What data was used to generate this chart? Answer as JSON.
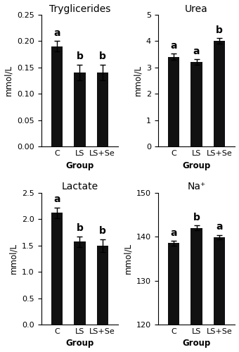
{
  "subplots": [
    {
      "title": "Tryglicerides",
      "ylabel": "mmol/L",
      "xlabel": "Group",
      "categories": [
        "C",
        "LS",
        "LS+Se"
      ],
      "values": [
        0.19,
        0.14,
        0.14
      ],
      "errors": [
        0.01,
        0.015,
        0.015
      ],
      "letters": [
        "a",
        "b",
        "b"
      ],
      "ylim": [
        0,
        0.25
      ],
      "yticks": [
        0.0,
        0.05,
        0.1,
        0.15,
        0.2,
        0.25
      ]
    },
    {
      "title": "Urea",
      "ylabel": "mmol/L",
      "xlabel": "Group",
      "categories": [
        "C",
        "LS",
        "LS+Se"
      ],
      "values": [
        3.4,
        3.2,
        4.0
      ],
      "errors": [
        0.12,
        0.1,
        0.1
      ],
      "letters": [
        "a",
        "a",
        "b"
      ],
      "ylim": [
        0,
        5
      ],
      "yticks": [
        0,
        1,
        2,
        3,
        4,
        5
      ]
    },
    {
      "title": "Lactate",
      "ylabel": "mmol/L",
      "xlabel": "Group",
      "categories": [
        "C",
        "LS",
        "LS+Se"
      ],
      "values": [
        2.12,
        1.57,
        1.5
      ],
      "errors": [
        0.1,
        0.1,
        0.12
      ],
      "letters": [
        "a",
        "b",
        "b"
      ],
      "ylim": [
        0.0,
        2.5
      ],
      "yticks": [
        0.0,
        0.5,
        1.0,
        1.5,
        2.0,
        2.5
      ]
    },
    {
      "title": "Na⁺",
      "ylabel": "mmol/L",
      "xlabel": "Group",
      "categories": [
        "C",
        "LS",
        "LS+Se"
      ],
      "values": [
        138.5,
        142.0,
        139.8
      ],
      "errors": [
        0.5,
        0.5,
        0.5
      ],
      "letters": [
        "a",
        "b",
        "a"
      ],
      "ylim": [
        120,
        150
      ],
      "yticks": [
        120,
        130,
        140,
        150
      ]
    }
  ],
  "bar_color": "#111111",
  "bar_width": 0.5,
  "letter_fontsize": 10,
  "title_fontsize": 10,
  "label_fontsize": 8.5,
  "tick_fontsize": 8,
  "figure_facecolor": "#ffffff",
  "error_capsize": 3
}
